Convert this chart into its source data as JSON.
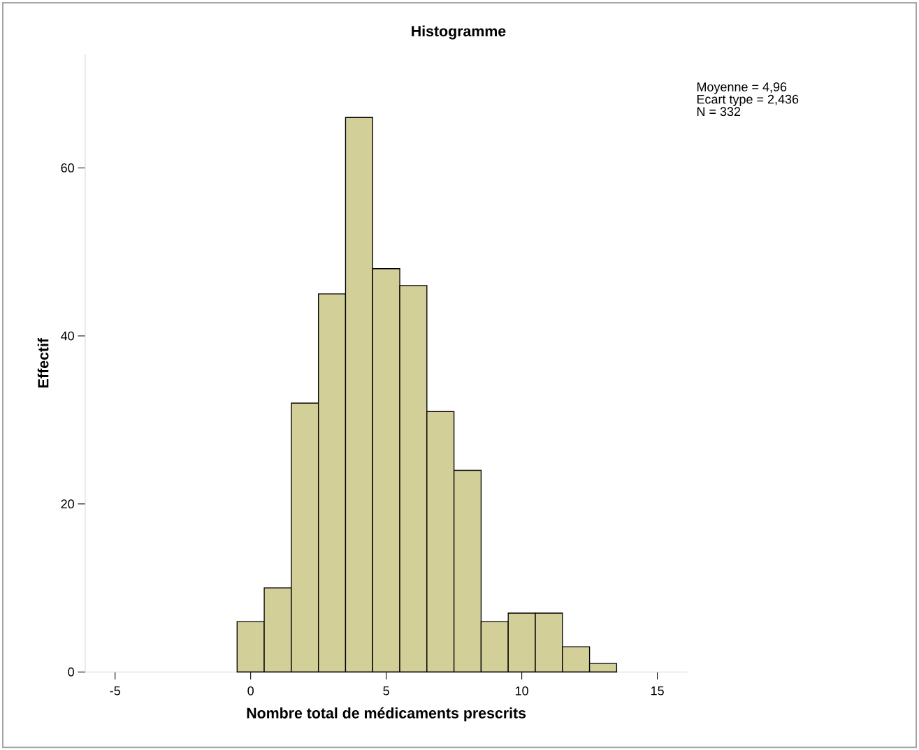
{
  "chart_data": {
    "type": "histogram",
    "title": "Histogramme",
    "xlabel": "Nombre total de médicaments prescrits",
    "ylabel": "Effectif",
    "bins": [
      -0.5,
      0.5,
      1.5,
      2.5,
      3.5,
      4.5,
      5.5,
      6.5,
      7.5,
      8.5,
      9.5,
      10.5,
      11.5,
      12.5,
      13.5
    ],
    "values": [
      6,
      10,
      32,
      45,
      66,
      48,
      46,
      31,
      24,
      6,
      7,
      7,
      3,
      1
    ],
    "color": "#d3cf99",
    "xlim": [
      -6.1,
      16.1
    ],
    "ylim": [
      0,
      73.5
    ],
    "xticks": [
      -5,
      0,
      5,
      10,
      15
    ],
    "yticks": [
      0,
      20,
      40,
      60
    ],
    "annotations": [
      "Moyenne = 4,96",
      "Ecart type = 2,436",
      "N = 332"
    ]
  }
}
